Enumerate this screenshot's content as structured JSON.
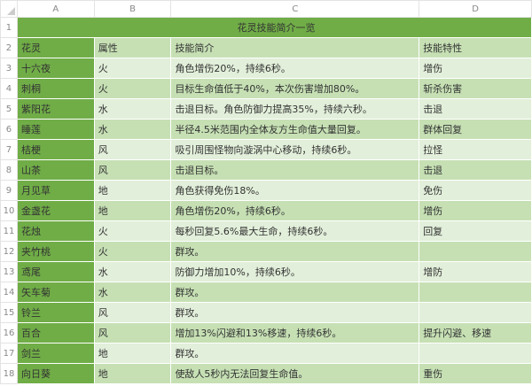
{
  "columns": [
    "A",
    "B",
    "C",
    "D"
  ],
  "title": "花灵技能简介一览",
  "headers": [
    "花灵",
    "属性",
    "技能简介",
    "技能特性"
  ],
  "rows": [
    [
      "十六夜",
      "火",
      "角色增伤20%，持续6秒。",
      "增伤"
    ],
    [
      "刺桐",
      "火",
      "目标生命值低于40%，本次伤害增加80%。",
      "斩杀伤害"
    ],
    [
      "紫阳花",
      "水",
      "击退目标。角色防御力提高35%，持续六秒。",
      "击退"
    ],
    [
      "睡莲",
      "水",
      "半径4.5米范围内全体友方生命值大量回复。",
      "群体回复"
    ],
    [
      "桔梗",
      "风",
      "吸引周围怪物向漩涡中心移动，持续6秒。",
      "拉怪"
    ],
    [
      "山茶",
      "风",
      "击退目标。",
      "击退"
    ],
    [
      "月见草",
      "地",
      "角色获得免伤18%。",
      "免伤"
    ],
    [
      "金盏花",
      "地",
      "角色增伤20%，持续6秒。",
      "增伤"
    ],
    [
      "花烛",
      "火",
      "每秒回复5.6%最大生命，持续6秒。",
      "回复"
    ],
    [
      "夹竹桃",
      "火",
      "群攻。",
      ""
    ],
    [
      "鸢尾",
      "水",
      "防御力增加10%，持续6秒。",
      "增防"
    ],
    [
      "矢车菊",
      "水",
      "群攻。",
      ""
    ],
    [
      "铃兰",
      "风",
      "群攻。",
      ""
    ],
    [
      "百合",
      "风",
      "增加13%闪避和13%移速，持续6秒。",
      "提升闪避、移速"
    ],
    [
      "剑兰",
      "地",
      "群攻。",
      ""
    ],
    [
      "向日葵",
      "地",
      "使敌人5秒内无法回复生命值。",
      "重伤"
    ]
  ],
  "colors": {
    "title": "#70ad47",
    "name_col": "#70ad47",
    "row_dark": "#c6e0b4",
    "row_light": "#e2efda"
  }
}
